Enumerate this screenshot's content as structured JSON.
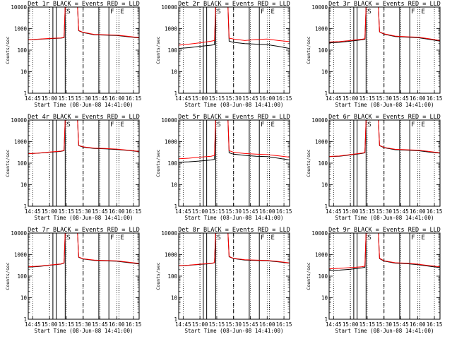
{
  "colors": {
    "events": "#000000",
    "lld": "#ff0000",
    "axes": "#000000",
    "grid": "#000000"
  },
  "common": {
    "xlabel": "Start Time (08-Jun-08 14:41:00)",
    "ylabel": "Counts/sec",
    "x_ticks": [
      "14:45",
      "15:00",
      "15:15",
      "15:30",
      "15:45",
      "16:00",
      "16:15"
    ],
    "y_ticks": [
      "1",
      "10",
      "100",
      "1000",
      "10000"
    ],
    "marker_S": "S",
    "marker_F": "F",
    "marker_E": "E"
  },
  "chart_data": [
    {
      "type": "line",
      "title": "Det 1r BLACK = Events  RED = LLD",
      "xlabel": "Start Time (08-Jun-08 14:41:00)",
      "ylabel": "Counts/sec",
      "y_scale": "log",
      "ylim": [
        1,
        10000
      ],
      "x_range": [
        "14:41",
        "16:20"
      ],
      "x": [
        "14:41",
        "14:50",
        "15:00",
        "15:10",
        "15:13",
        "15:14",
        "15:25",
        "15:26",
        "15:30",
        "15:40",
        "15:50",
        "16:00",
        "16:10",
        "16:20"
      ],
      "series": [
        {
          "name": "BLACK = Events",
          "values": [
            300,
            320,
            340,
            360,
            380,
            10000,
            10000,
            800,
            650,
            520,
            500,
            480,
            420,
            370
          ]
        },
        {
          "name": "RED = LLD",
          "values": [
            305,
            325,
            350,
            370,
            390,
            10000,
            10000,
            820,
            670,
            540,
            520,
            500,
            440,
            380
          ]
        }
      ]
    },
    {
      "type": "line",
      "title": "Det 2r BLACK = Events  RED = LLD",
      "xlabel": "Start Time (08-Jun-08 14:41:00)",
      "ylabel": "Counts/sec",
      "y_scale": "log",
      "ylim": [
        1,
        10000
      ],
      "x_range": [
        "14:41",
        "16:20"
      ],
      "x": [
        "14:41",
        "14:50",
        "15:00",
        "15:10",
        "15:13",
        "15:14",
        "15:25",
        "15:26",
        "15:30",
        "15:40",
        "15:50",
        "16:00",
        "16:10",
        "16:20"
      ],
      "series": [
        {
          "name": "BLACK = Events",
          "values": [
            120,
            130,
            150,
            170,
            180,
            10000,
            10000,
            260,
            230,
            200,
            190,
            180,
            150,
            120
          ]
        },
        {
          "name": "RED = LLD",
          "values": [
            170,
            190,
            220,
            260,
            280,
            10000,
            10000,
            360,
            330,
            280,
            310,
            330,
            280,
            250
          ]
        }
      ]
    },
    {
      "type": "line",
      "title": "Det 3r BLACK = Events  RED = LLD",
      "xlabel": "Start Time (08-Jun-08 14:41:00)",
      "ylabel": "Counts/sec",
      "y_scale": "log",
      "ylim": [
        1,
        10000
      ],
      "x_range": [
        "14:41",
        "16:20"
      ],
      "x": [
        "14:41",
        "14:50",
        "15:00",
        "15:10",
        "15:13",
        "15:14",
        "15:25",
        "15:26",
        "15:30",
        "15:40",
        "15:50",
        "16:00",
        "16:10",
        "16:20"
      ],
      "series": [
        {
          "name": "BLACK = Events",
          "values": [
            220,
            230,
            260,
            300,
            320,
            10000,
            10000,
            700,
            550,
            430,
            400,
            380,
            320,
            260
          ]
        },
        {
          "name": "RED = LLD",
          "values": [
            240,
            250,
            280,
            320,
            340,
            10000,
            10000,
            720,
            570,
            450,
            420,
            400,
            340,
            280
          ]
        }
      ]
    },
    {
      "type": "line",
      "title": "Det 4r BLACK = Events  RED = LLD",
      "xlabel": "Start Time (08-Jun-08 14:41:00)",
      "ylabel": "Counts/sec",
      "y_scale": "log",
      "ylim": [
        1,
        10000
      ],
      "x_range": [
        "14:41",
        "16:20"
      ],
      "x": [
        "14:41",
        "14:50",
        "15:00",
        "15:10",
        "15:13",
        "15:14",
        "15:25",
        "15:26",
        "15:30",
        "15:40",
        "15:50",
        "16:00",
        "16:10",
        "16:20"
      ],
      "series": [
        {
          "name": "BLACK = Events",
          "values": [
            270,
            290,
            320,
            350,
            380,
            10000,
            10000,
            650,
            550,
            480,
            460,
            430,
            390,
            340
          ]
        },
        {
          "name": "RED = LLD",
          "values": [
            275,
            295,
            330,
            360,
            390,
            10000,
            10000,
            670,
            570,
            500,
            480,
            450,
            400,
            350
          ]
        }
      ]
    },
    {
      "type": "line",
      "title": "Det 5r BLACK = Events  RED = LLD",
      "xlabel": "Start Time (08-Jun-08 14:41:00)",
      "ylabel": "Counts/sec",
      "y_scale": "log",
      "ylim": [
        1,
        10000
      ],
      "x_range": [
        "14:41",
        "16:20"
      ],
      "x": [
        "14:41",
        "14:50",
        "15:00",
        "15:10",
        "15:13",
        "15:14",
        "15:25",
        "15:26",
        "15:30",
        "15:40",
        "15:50",
        "16:00",
        "16:10",
        "16:20"
      ],
      "series": [
        {
          "name": "BLACK = Events",
          "values": [
            110,
            115,
            125,
            140,
            150,
            10000,
            10000,
            300,
            260,
            230,
            210,
            200,
            170,
            140
          ]
        },
        {
          "name": "RED = LLD",
          "values": [
            160,
            170,
            190,
            210,
            230,
            10000,
            10000,
            380,
            320,
            280,
            260,
            250,
            220,
            190
          ]
        }
      ]
    },
    {
      "type": "line",
      "title": "Det 6r BLACK = Events  RED = LLD",
      "xlabel": "Start Time (08-Jun-08 14:41:00)",
      "ylabel": "Counts/sec",
      "y_scale": "log",
      "ylim": [
        1,
        10000
      ],
      "x_range": [
        "14:41",
        "16:20"
      ],
      "x": [
        "14:41",
        "14:50",
        "15:00",
        "15:10",
        "15:13",
        "15:14",
        "15:25",
        "15:26",
        "15:30",
        "15:40",
        "15:50",
        "16:00",
        "16:10",
        "16:20"
      ],
      "series": [
        {
          "name": "BLACK = Events",
          "values": [
            200,
            210,
            240,
            280,
            300,
            10000,
            10000,
            650,
            520,
            420,
            400,
            380,
            330,
            290
          ]
        },
        {
          "name": "RED = LLD",
          "values": [
            205,
            215,
            250,
            290,
            310,
            10000,
            10000,
            670,
            540,
            440,
            420,
            400,
            350,
            300
          ]
        }
      ]
    },
    {
      "type": "line",
      "title": "Det 7r BLACK = Events  RED = LLD",
      "xlabel": "Start Time (08-Jun-08 14:41:00)",
      "ylabel": "Counts/sec",
      "y_scale": "log",
      "ylim": [
        1,
        10000
      ],
      "x_range": [
        "14:41",
        "16:20"
      ],
      "x": [
        "14:41",
        "14:50",
        "15:00",
        "15:10",
        "15:13",
        "15:14",
        "15:25",
        "15:26",
        "15:30",
        "15:40",
        "15:50",
        "16:00",
        "16:10",
        "16:20"
      ],
      "series": [
        {
          "name": "BLACK = Events",
          "values": [
            260,
            280,
            320,
            360,
            400,
            10000,
            10000,
            750,
            620,
            540,
            510,
            490,
            430,
            370
          ]
        },
        {
          "name": "RED = LLD",
          "values": [
            270,
            290,
            330,
            370,
            410,
            10000,
            10000,
            780,
            640,
            560,
            530,
            510,
            450,
            390
          ]
        }
      ]
    },
    {
      "type": "line",
      "title": "Det 8r BLACK = Events  RED = LLD",
      "xlabel": "Start Time (08-Jun-08 14:41:00)",
      "ylabel": "Counts/sec",
      "y_scale": "log",
      "ylim": [
        1,
        10000
      ],
      "x_range": [
        "14:41",
        "16:20"
      ],
      "x": [
        "14:41",
        "14:50",
        "15:00",
        "15:10",
        "15:13",
        "15:14",
        "15:25",
        "15:26",
        "15:30",
        "15:40",
        "15:50",
        "16:00",
        "16:10",
        "16:20"
      ],
      "series": [
        {
          "name": "BLACK = Events",
          "values": [
            300,
            320,
            350,
            380,
            420,
            10000,
            10000,
            800,
            650,
            560,
            540,
            520,
            460,
            400
          ]
        },
        {
          "name": "RED = LLD",
          "values": [
            305,
            325,
            360,
            390,
            430,
            10000,
            10000,
            820,
            670,
            580,
            560,
            540,
            480,
            410
          ]
        }
      ]
    },
    {
      "type": "line",
      "title": "Det 9r BLACK = Events  RED = LLD",
      "xlabel": "Start Time (08-Jun-08 14:41:00)",
      "ylabel": "Counts/sec",
      "y_scale": "log",
      "ylim": [
        1,
        10000
      ],
      "x_range": [
        "14:41",
        "16:20"
      ],
      "x": [
        "14:41",
        "14:50",
        "15:00",
        "15:10",
        "15:13",
        "15:14",
        "15:25",
        "15:26",
        "15:30",
        "15:40",
        "15:50",
        "16:00",
        "16:10",
        "16:20"
      ],
      "series": [
        {
          "name": "BLACK = Events",
          "values": [
            180,
            190,
            210,
            240,
            260,
            10000,
            10000,
            650,
            500,
            400,
            380,
            340,
            290,
            250
          ]
        },
        {
          "name": "RED = LLD",
          "values": [
            220,
            230,
            250,
            270,
            290,
            10000,
            10000,
            680,
            520,
            420,
            400,
            360,
            310,
            270
          ]
        }
      ]
    }
  ]
}
